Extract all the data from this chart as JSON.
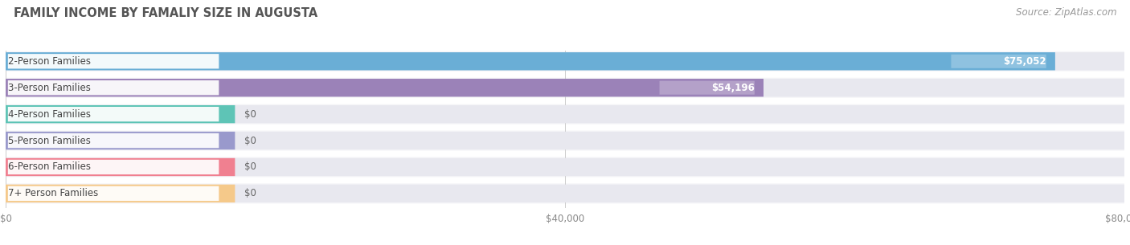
{
  "title": "FAMILY INCOME BY FAMALIY SIZE IN AUGUSTA",
  "source": "Source: ZipAtlas.com",
  "categories": [
    "2-Person Families",
    "3-Person Families",
    "4-Person Families",
    "5-Person Families",
    "6-Person Families",
    "7+ Person Families"
  ],
  "values": [
    75052,
    54196,
    0,
    0,
    0,
    0
  ],
  "bar_colors": [
    "#6aaed6",
    "#9b82b8",
    "#5ec4b6",
    "#9999cc",
    "#f08090",
    "#f5c98a"
  ],
  "value_labels": [
    "$75,052",
    "$54,196",
    "$0",
    "$0",
    "$0",
    "$0"
  ],
  "xlim": [
    0,
    80000
  ],
  "xticks": [
    0,
    40000,
    80000
  ],
  "xtick_labels": [
    "$0",
    "$40,000",
    "$80,000"
  ],
  "page_bg": "#ffffff",
  "bar_bg": "#e8e8ef",
  "row_bg": "#f5f5f8",
  "title_fontsize": 10.5,
  "source_fontsize": 8.5,
  "label_fontsize": 8.5,
  "value_fontsize": 8.5
}
